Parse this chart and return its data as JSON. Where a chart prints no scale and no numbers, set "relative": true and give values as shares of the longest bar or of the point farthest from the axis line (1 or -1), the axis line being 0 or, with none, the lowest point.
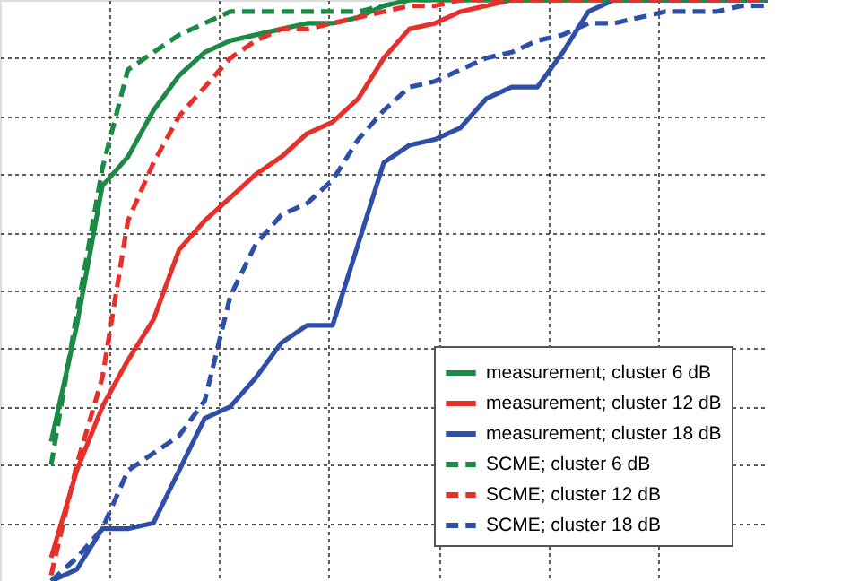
{
  "chart_data": {
    "type": "line",
    "relative": true,
    "tick_labels": false,
    "grid": true,
    "legend": "bottom right",
    "categories": [
      null,
      null,
      null,
      null,
      null,
      null,
      null,
      null,
      null,
      null,
      null,
      null,
      null,
      null,
      null,
      null,
      null,
      null,
      null,
      null,
      null,
      null,
      null,
      null,
      null,
      null,
      null,
      null,
      null,
      null,
      null
    ],
    "series": [
      {
        "name": "measurement; cluster 6 dB",
        "color": "#1a8a45",
        "line_style": "solid",
        "values": [
          null,
          null,
          0.24,
          0.44,
          0.68,
          0.73,
          0.81,
          0.87,
          0.91,
          0.93,
          0.94,
          0.95,
          0.96,
          0.96,
          0.97,
          0.99,
          1,
          1,
          1,
          1,
          1,
          1,
          1,
          1,
          1,
          1,
          1,
          1,
          1,
          1,
          1
        ]
      },
      {
        "name": "measurement; cluster 12 dB",
        "color": "#e8302a",
        "line_style": "solid",
        "values": [
          null,
          null,
          0.04,
          0.19,
          0.3,
          0.38,
          0.45,
          0.57,
          0.62,
          0.66,
          0.7,
          0.73,
          0.77,
          0.79,
          0.83,
          0.9,
          0.95,
          0.96,
          0.98,
          0.99,
          1,
          1,
          1,
          1,
          1,
          1,
          1,
          1,
          1,
          1,
          1
        ]
      },
      {
        "name": "measurement; cluster 18 dB",
        "color": "#2e4fa8",
        "line_style": "solid",
        "values": [
          null,
          null,
          0,
          0.02,
          0.09,
          0.09,
          0.1,
          0.19,
          0.28,
          0.3,
          0.35,
          0.41,
          0.44,
          0.44,
          0.58,
          0.72,
          0.75,
          0.76,
          0.78,
          0.83,
          0.85,
          0.85,
          0.91,
          0.98,
          1,
          1,
          1,
          1,
          1,
          1,
          1
        ]
      },
      {
        "name": "SCME; cluster 6 dB",
        "color": "#1a8a45",
        "line_style": "dashed",
        "values": [
          null,
          null,
          0.2,
          0.46,
          0.71,
          0.88,
          0.91,
          0.94,
          0.96,
          0.98,
          0.98,
          0.98,
          0.98,
          0.98,
          0.98,
          0.99,
          1,
          1,
          1,
          1,
          1,
          1,
          1,
          1,
          1,
          1,
          1,
          1,
          1,
          1,
          1
        ]
      },
      {
        "name": "SCME; cluster 12 dB",
        "color": "#e8302a",
        "line_style": "dashed",
        "values": [
          null,
          null,
          0.01,
          0.2,
          0.35,
          0.62,
          0.72,
          0.8,
          0.85,
          0.9,
          0.93,
          0.95,
          0.95,
          0.96,
          0.97,
          0.98,
          0.99,
          0.99,
          1,
          1,
          1,
          1,
          1,
          1,
          1,
          1,
          1,
          1,
          1,
          1,
          1
        ]
      },
      {
        "name": "SCME; cluster 18 dB",
        "color": "#2e4fa8",
        "line_style": "dashed",
        "values": [
          null,
          null,
          0,
          0.04,
          0.09,
          0.19,
          0.22,
          0.25,
          0.31,
          0.49,
          0.58,
          0.63,
          0.65,
          0.69,
          0.76,
          0.81,
          0.85,
          0.86,
          0.88,
          0.9,
          0.91,
          0.93,
          0.94,
          0.96,
          0.96,
          0.97,
          0.98,
          0.98,
          0.98,
          0.99,
          0.99
        ]
      }
    ]
  }
}
